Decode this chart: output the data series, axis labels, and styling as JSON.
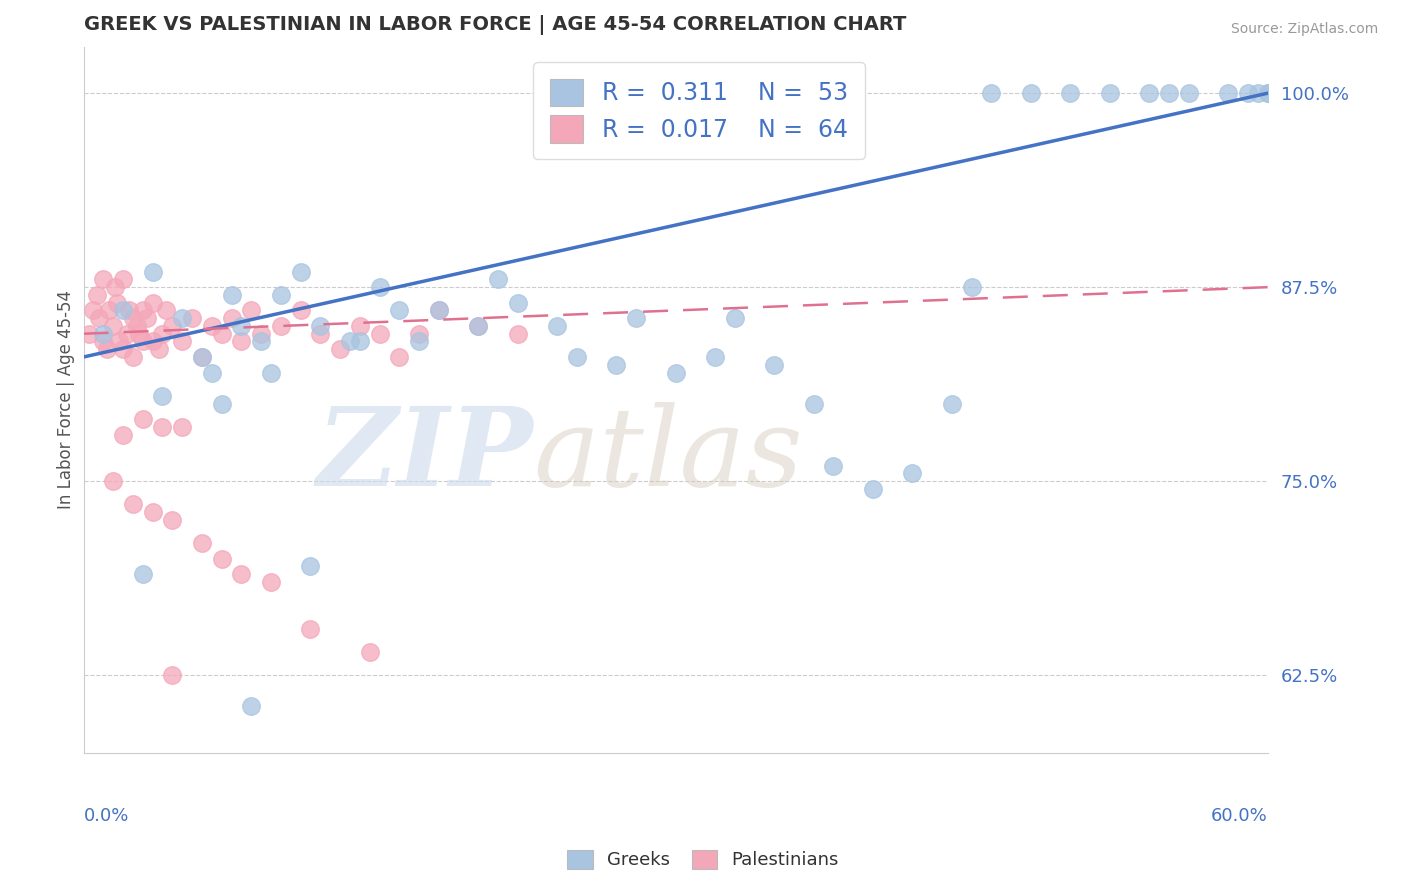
{
  "title": "GREEK VS PALESTINIAN IN LABOR FORCE | AGE 45-54 CORRELATION CHART",
  "source": "Source: ZipAtlas.com",
  "ylabel": "In Labor Force | Age 45-54",
  "xmin": 0.0,
  "xmax": 60.0,
  "ymin": 57.5,
  "ymax": 103.0,
  "yticks": [
    62.5,
    75.0,
    87.5,
    100.0
  ],
  "ytick_labels": [
    "62.5%",
    "75.0%",
    "87.5%",
    "100.0%"
  ],
  "legend_r_blue": "0.311",
  "legend_n_blue": "53",
  "legend_r_pink": "0.017",
  "legend_n_pink": "64",
  "blue_color": "#a8c4e0",
  "pink_color": "#f4a7b9",
  "blue_line_color": "#4472c4",
  "pink_line_color": "#e07090",
  "axis_color": "#4472c4",
  "blue_line_x0": 0.0,
  "blue_line_y0": 83.0,
  "blue_line_x1": 60.0,
  "blue_line_y1": 100.0,
  "pink_line_x0": 0.0,
  "pink_line_y0": 84.5,
  "pink_line_x1": 60.0,
  "pink_line_y1": 87.5,
  "blue_x": [
    1.0,
    2.0,
    3.5,
    5.0,
    6.0,
    7.5,
    8.0,
    9.0,
    10.0,
    11.0,
    12.0,
    13.5,
    15.0,
    16.0,
    17.0,
    18.0,
    20.0,
    21.0,
    22.0,
    24.0,
    25.0,
    27.0,
    28.0,
    30.0,
    32.0,
    33.0,
    35.0,
    37.0,
    38.0,
    40.0,
    42.0,
    44.0,
    45.0,
    46.0,
    48.0,
    50.0,
    52.0,
    54.0,
    55.0,
    56.0,
    58.0,
    59.0,
    60.0,
    60.0,
    59.5,
    7.0,
    9.5,
    4.0,
    14.0,
    6.5,
    3.0,
    11.5,
    8.5
  ],
  "blue_y": [
    84.5,
    86.0,
    88.5,
    85.5,
    83.0,
    87.0,
    85.0,
    84.0,
    87.0,
    88.5,
    85.0,
    84.0,
    87.5,
    86.0,
    84.0,
    86.0,
    85.0,
    88.0,
    86.5,
    85.0,
    83.0,
    82.5,
    85.5,
    82.0,
    83.0,
    85.5,
    82.5,
    80.0,
    76.0,
    74.5,
    75.5,
    80.0,
    87.5,
    100.0,
    100.0,
    100.0,
    100.0,
    100.0,
    100.0,
    100.0,
    100.0,
    100.0,
    100.0,
    100.0,
    100.0,
    80.0,
    82.0,
    80.5,
    84.0,
    82.0,
    69.0,
    69.5,
    60.5
  ],
  "pink_x": [
    0.3,
    0.5,
    0.7,
    0.8,
    1.0,
    1.0,
    1.2,
    1.3,
    1.5,
    1.6,
    1.7,
    1.8,
    2.0,
    2.0,
    2.2,
    2.3,
    2.5,
    2.5,
    2.7,
    2.8,
    3.0,
    3.0,
    3.2,
    3.5,
    3.5,
    3.8,
    4.0,
    4.2,
    4.5,
    5.0,
    5.5,
    6.0,
    6.5,
    7.0,
    7.5,
    8.0,
    8.5,
    9.0,
    10.0,
    11.0,
    12.0,
    13.0,
    14.0,
    15.0,
    16.0,
    17.0,
    18.0,
    20.0,
    22.0,
    3.0,
    4.0,
    2.0,
    5.0,
    1.5,
    2.5,
    3.5,
    4.5,
    6.0,
    7.0,
    8.0,
    9.5,
    11.5,
    14.5,
    4.5
  ],
  "pink_y": [
    84.5,
    86.0,
    87.0,
    85.5,
    88.0,
    84.0,
    83.5,
    86.0,
    85.0,
    87.5,
    86.5,
    84.0,
    88.0,
    83.5,
    84.5,
    86.0,
    85.5,
    83.0,
    85.0,
    84.5,
    86.0,
    84.0,
    85.5,
    84.0,
    86.5,
    83.5,
    84.5,
    86.0,
    85.0,
    84.0,
    85.5,
    83.0,
    85.0,
    84.5,
    85.5,
    84.0,
    86.0,
    84.5,
    85.0,
    86.0,
    84.5,
    83.5,
    85.0,
    84.5,
    83.0,
    84.5,
    86.0,
    85.0,
    84.5,
    79.0,
    78.5,
    78.0,
    78.5,
    75.0,
    73.5,
    73.0,
    72.5,
    71.0,
    70.0,
    69.0,
    68.5,
    65.5,
    64.0,
    62.5
  ]
}
